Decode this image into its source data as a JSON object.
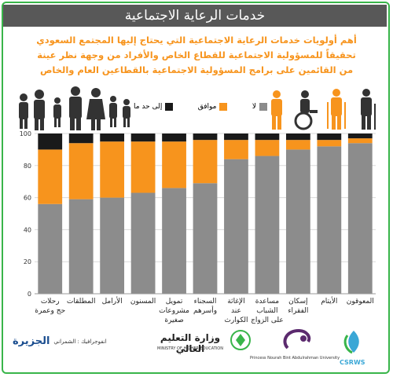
{
  "title": "خدمات الرعاية الاجتماعية",
  "intro": [
    "أهم أولويات خدمات الرعاية الاجتماعية التي يحتاج إليها المجتمع السعودي",
    "تحقيقاً للمسؤولية الاجتماعية للقطاع الخاص والأفراد من وجهة نظر عينة",
    "من القائمين على برامج المسؤولية الاجتماعية بالقطاعين العام والخاص"
  ],
  "legend": [
    {
      "label": "لا",
      "color": "#8c8c8c"
    },
    {
      "label": "موافق",
      "color": "#f7941d"
    },
    {
      "label": "إلى حد ما",
      "color": "#1a1a1a"
    }
  ],
  "chart_data": {
    "type": "bar",
    "stacked": true,
    "categories": [
      "المعوقون",
      "الأيتام",
      "إسكان الفقراء",
      "مساعدة الشباب على الزواج",
      "الإغاثة عند الكوارث",
      "السجناء وأسرهم",
      "تمويل مشروعات صغيرة",
      "المسنون",
      "الأرامل",
      "المطلقات",
      "رحلات حج وعمرة"
    ],
    "series": [
      {
        "name": "لا",
        "color": "#8c8c8c",
        "values": [
          94,
          92,
          90,
          86,
          84,
          69,
          66,
          63,
          60,
          59,
          56
        ]
      },
      {
        "name": "موافق",
        "color": "#f7941d",
        "values": [
          3,
          4,
          6,
          10,
          12,
          27,
          29,
          32,
          35,
          35,
          34
        ]
      },
      {
        "name": "إلى حد ما",
        "color": "#1a1a1a",
        "values": [
          3,
          4,
          4,
          4,
          4,
          4,
          5,
          5,
          5,
          6,
          10
        ]
      }
    ],
    "ylim": [
      0,
      100
    ],
    "yticks": [
      0,
      20,
      40,
      60,
      80,
      100
    ],
    "grid": true
  },
  "xlabels": [
    [
      "المعوقون"
    ],
    [
      "الأيتام"
    ],
    [
      "إسكان",
      "الفقراء"
    ],
    [
      "مساعدة",
      "الشباب",
      "على الزواج"
    ],
    [
      "الإغاثة",
      "عند",
      "الكوارث"
    ],
    [
      "السجناء",
      "وأسرهم"
    ],
    [
      "تمويل",
      "مشروعات",
      "صغيرة"
    ],
    [
      "المسنون"
    ],
    [
      "الأرامل"
    ],
    [
      "المطلقات"
    ],
    [
      "رحلات",
      "حج وعمرة"
    ]
  ],
  "footer": {
    "logo1": "CSRWS",
    "logo2": "Princess Nourah Bint Abdulrahman University",
    "logo3": "وزارة التعليم العالي",
    "logo3_en": "MINISTRY OF HIGHER EDUCATION",
    "credit": "انفوجرافيك : الشمراني",
    "brand": "الجزيرة"
  },
  "colors": {
    "gray": "#8c8c8c",
    "orange": "#f7941d",
    "black": "#1a1a1a",
    "green": "#39b54a",
    "titlebar": "#585858"
  }
}
